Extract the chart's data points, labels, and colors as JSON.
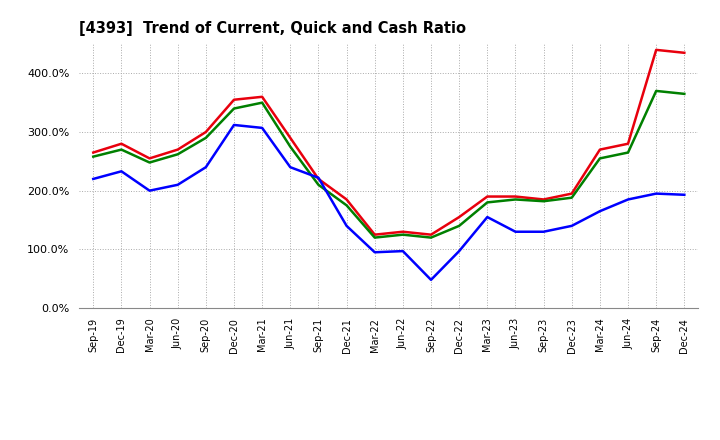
{
  "title": "[4393]  Trend of Current, Quick and Cash Ratio",
  "x_labels": [
    "Sep-19",
    "Dec-19",
    "Mar-20",
    "Jun-20",
    "Sep-20",
    "Dec-20",
    "Mar-21",
    "Jun-21",
    "Sep-21",
    "Dec-21",
    "Mar-22",
    "Jun-22",
    "Sep-22",
    "Dec-22",
    "Mar-23",
    "Jun-23",
    "Sep-23",
    "Dec-23",
    "Mar-24",
    "Jun-24",
    "Sep-24",
    "Dec-24"
  ],
  "current_ratio": [
    265,
    280,
    255,
    270,
    300,
    355,
    360,
    290,
    220,
    185,
    125,
    130,
    125,
    155,
    190,
    190,
    185,
    195,
    270,
    280,
    440,
    435
  ],
  "quick_ratio": [
    258,
    270,
    248,
    262,
    290,
    340,
    350,
    275,
    210,
    175,
    120,
    125,
    120,
    140,
    180,
    185,
    182,
    188,
    255,
    265,
    370,
    365
  ],
  "cash_ratio": [
    220,
    233,
    200,
    210,
    240,
    312,
    307,
    240,
    222,
    140,
    95,
    97,
    48,
    97,
    155,
    130,
    130,
    140,
    165,
    185,
    195,
    193
  ],
  "ylim": [
    0,
    450
  ],
  "yticks": [
    0,
    100,
    200,
    300,
    400
  ],
  "current_color": "#e8000d",
  "quick_color": "#008000",
  "cash_color": "#0000ff",
  "bg_color": "#ffffff",
  "plot_bg_color": "#ffffff",
  "grid_color": "#aaaaaa",
  "linewidth": 1.8
}
